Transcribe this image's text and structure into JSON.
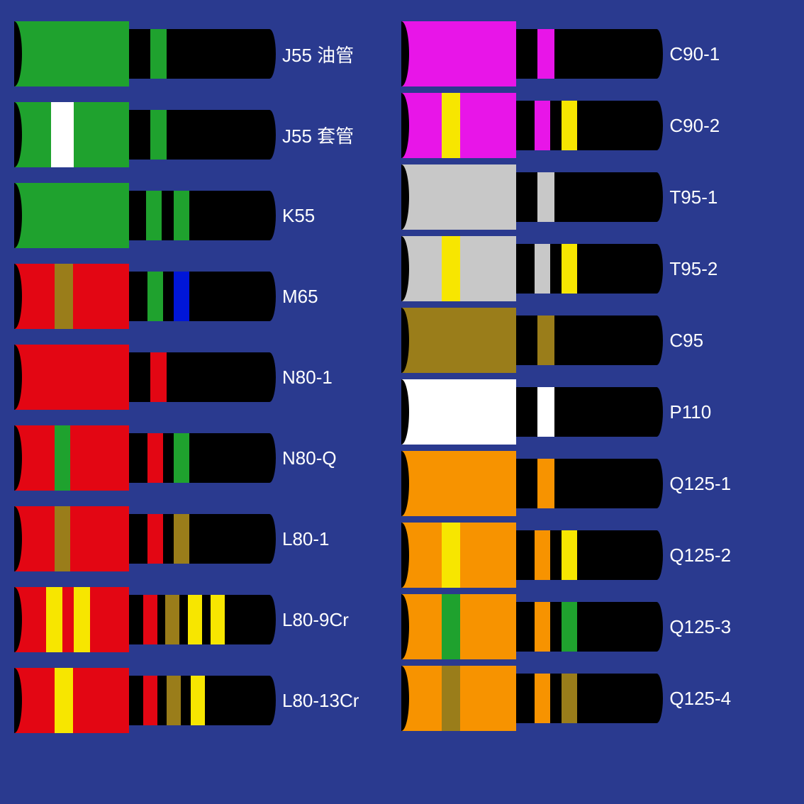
{
  "background_color": "#2a3a8f",
  "label_color": "#ffffff",
  "label_fontsize": 26,
  "pipe_body_color": "#000000",
  "end_cap_color": "#000000",
  "columns": [
    {
      "gap": 22,
      "items": [
        {
          "label": "J55 油管",
          "coupling_color": "#1fa22e",
          "coupling_stripes": [],
          "body_stripes": [
            {
              "left_pct": 15,
              "width_pct": 12,
              "color": "#1fa22e"
            }
          ]
        },
        {
          "label": "J55 套管",
          "coupling_color": "#1fa22e",
          "coupling_stripes": [
            {
              "left_pct": 32,
              "width_pct": 20,
              "color": "#ffffff"
            }
          ],
          "body_stripes": [
            {
              "left_pct": 15,
              "width_pct": 12,
              "color": "#1fa22e"
            }
          ]
        },
        {
          "label": "K55",
          "coupling_color": "#1fa22e",
          "coupling_stripes": [],
          "body_stripes": [
            {
              "left_pct": 12,
              "width_pct": 11,
              "color": "#1fa22e"
            },
            {
              "left_pct": 32,
              "width_pct": 11,
              "color": "#1fa22e"
            }
          ]
        },
        {
          "label": "M65",
          "coupling_color": "#e30613",
          "coupling_stripes": [
            {
              "left_pct": 35,
              "width_pct": 16,
              "color": "#9a7d1a"
            }
          ],
          "body_stripes": [
            {
              "left_pct": 13,
              "width_pct": 11,
              "color": "#1fa22e"
            },
            {
              "left_pct": 32,
              "width_pct": 11,
              "color": "#0016d8"
            }
          ]
        },
        {
          "label": "N80-1",
          "coupling_color": "#e30613",
          "coupling_stripes": [],
          "body_stripes": [
            {
              "left_pct": 15,
              "width_pct": 12,
              "color": "#e30613"
            }
          ]
        },
        {
          "label": "N80-Q",
          "coupling_color": "#e30613",
          "coupling_stripes": [
            {
              "left_pct": 35,
              "width_pct": 14,
              "color": "#1fa22e"
            }
          ],
          "body_stripes": [
            {
              "left_pct": 13,
              "width_pct": 11,
              "color": "#e30613"
            },
            {
              "left_pct": 32,
              "width_pct": 11,
              "color": "#1fa22e"
            }
          ]
        },
        {
          "label": "L80-1",
          "coupling_color": "#e30613",
          "coupling_stripes": [
            {
              "left_pct": 35,
              "width_pct": 14,
              "color": "#9a7d1a"
            }
          ],
          "body_stripes": [
            {
              "left_pct": 13,
              "width_pct": 11,
              "color": "#e30613"
            },
            {
              "left_pct": 32,
              "width_pct": 11,
              "color": "#9a7d1a"
            }
          ]
        },
        {
          "label": "L80-9Cr",
          "coupling_color": "#e30613",
          "coupling_stripes": [
            {
              "left_pct": 28,
              "width_pct": 14,
              "color": "#f7e600"
            },
            {
              "left_pct": 52,
              "width_pct": 14,
              "color": "#f7e600"
            }
          ],
          "body_stripes": [
            {
              "left_pct": 10,
              "width_pct": 10,
              "color": "#e30613"
            },
            {
              "left_pct": 26,
              "width_pct": 10,
              "color": "#9a7d1a"
            },
            {
              "left_pct": 42,
              "width_pct": 10,
              "color": "#f7e600"
            },
            {
              "left_pct": 58,
              "width_pct": 10,
              "color": "#f7e600"
            }
          ]
        },
        {
          "label": "L80-13Cr",
          "coupling_color": "#e30613",
          "coupling_stripes": [
            {
              "left_pct": 35,
              "width_pct": 16,
              "color": "#f7e600"
            }
          ],
          "body_stripes": [
            {
              "left_pct": 10,
              "width_pct": 10,
              "color": "#e30613"
            },
            {
              "left_pct": 27,
              "width_pct": 10,
              "color": "#9a7d1a"
            },
            {
              "left_pct": 44,
              "width_pct": 10,
              "color": "#f7e600"
            }
          ]
        }
      ]
    },
    {
      "gap": 9,
      "items": [
        {
          "label": "C90-1",
          "coupling_color": "#e815e8",
          "coupling_stripes": [],
          "body_stripes": [
            {
              "left_pct": 15,
              "width_pct": 12,
              "color": "#e815e8"
            }
          ]
        },
        {
          "label": "C90-2",
          "coupling_color": "#e815e8",
          "coupling_stripes": [
            {
              "left_pct": 35,
              "width_pct": 16,
              "color": "#f7e600"
            }
          ],
          "body_stripes": [
            {
              "left_pct": 13,
              "width_pct": 11,
              "color": "#e815e8"
            },
            {
              "left_pct": 32,
              "width_pct": 11,
              "color": "#f7e600"
            }
          ]
        },
        {
          "label": "T95-1",
          "coupling_color": "#c8c8c8",
          "coupling_stripes": [],
          "body_stripes": [
            {
              "left_pct": 15,
              "width_pct": 12,
              "color": "#c8c8c8"
            }
          ]
        },
        {
          "label": "T95-2",
          "coupling_color": "#c8c8c8",
          "coupling_stripes": [
            {
              "left_pct": 35,
              "width_pct": 16,
              "color": "#f7e600"
            }
          ],
          "body_stripes": [
            {
              "left_pct": 13,
              "width_pct": 11,
              "color": "#c8c8c8"
            },
            {
              "left_pct": 32,
              "width_pct": 11,
              "color": "#f7e600"
            }
          ]
        },
        {
          "label": "C95",
          "coupling_color": "#9a7d1a",
          "coupling_stripes": [],
          "body_stripes": [
            {
              "left_pct": 15,
              "width_pct": 12,
              "color": "#9a7d1a"
            }
          ]
        },
        {
          "label": "P110",
          "coupling_color": "#ffffff",
          "coupling_stripes": [],
          "body_stripes": [
            {
              "left_pct": 15,
              "width_pct": 12,
              "color": "#ffffff"
            }
          ]
        },
        {
          "label": "Q125-1",
          "coupling_color": "#f79300",
          "coupling_stripes": [],
          "body_stripes": [
            {
              "left_pct": 15,
              "width_pct": 12,
              "color": "#f79300"
            }
          ]
        },
        {
          "label": "Q125-2",
          "coupling_color": "#f79300",
          "coupling_stripes": [
            {
              "left_pct": 35,
              "width_pct": 16,
              "color": "#f7e600"
            }
          ],
          "body_stripes": [
            {
              "left_pct": 13,
              "width_pct": 11,
              "color": "#f79300"
            },
            {
              "left_pct": 32,
              "width_pct": 11,
              "color": "#f7e600"
            }
          ]
        },
        {
          "label": "Q125-3",
          "coupling_color": "#f79300",
          "coupling_stripes": [
            {
              "left_pct": 35,
              "width_pct": 16,
              "color": "#1fa22e"
            }
          ],
          "body_stripes": [
            {
              "left_pct": 13,
              "width_pct": 11,
              "color": "#f79300"
            },
            {
              "left_pct": 32,
              "width_pct": 11,
              "color": "#1fa22e"
            }
          ]
        },
        {
          "label": "Q125-4",
          "coupling_color": "#f79300",
          "coupling_stripes": [
            {
              "left_pct": 35,
              "width_pct": 16,
              "color": "#9a7d1a"
            }
          ],
          "body_stripes": [
            {
              "left_pct": 13,
              "width_pct": 11,
              "color": "#f79300"
            },
            {
              "left_pct": 32,
              "width_pct": 11,
              "color": "#9a7d1a"
            }
          ]
        }
      ]
    }
  ]
}
